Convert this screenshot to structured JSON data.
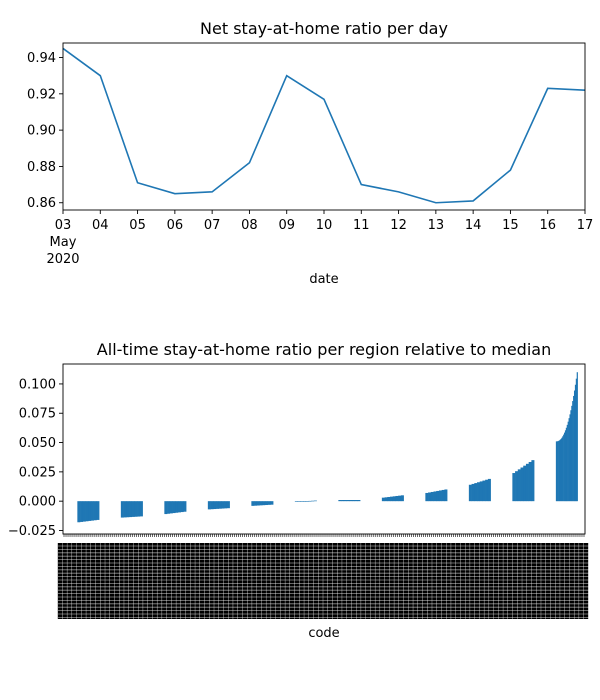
{
  "chart_data": [
    {
      "type": "line",
      "title": "Net stay-at-home ratio per day",
      "xlabel": "date",
      "ylabel": "",
      "x": [
        "2020-05-03",
        "2020-05-04",
        "2020-05-05",
        "2020-05-06",
        "2020-05-07",
        "2020-05-08",
        "2020-05-09",
        "2020-05-10",
        "2020-05-11",
        "2020-05-12",
        "2020-05-13",
        "2020-05-14",
        "2020-05-15",
        "2020-05-16",
        "2020-05-17"
      ],
      "x_tick_labels": [
        "03",
        "04",
        "05",
        "06",
        "07",
        "08",
        "09",
        "10",
        "11",
        "12",
        "13",
        "14",
        "15",
        "16",
        "17"
      ],
      "x_tick_sublabel": [
        "May",
        "2020"
      ],
      "series": [
        {
          "values": [
            0.945,
            0.93,
            0.871,
            0.865,
            0.866,
            0.882,
            0.93,
            0.917,
            0.87,
            0.866,
            0.86,
            0.861,
            0.878,
            0.923,
            0.922
          ],
          "color": "#1f77b4"
        }
      ],
      "ylim": [
        0.856,
        0.948
      ],
      "y_ticks": [
        0.86,
        0.88,
        0.9,
        0.92,
        0.94
      ],
      "y_tick_labels": [
        "0.86",
        "0.88",
        "0.90",
        "0.92",
        "0.94"
      ],
      "grid": false
    },
    {
      "type": "bar",
      "title": "All-time stay-at-home ratio per region relative to median",
      "xlabel": "code",
      "ylabel": "",
      "note": "Bars sorted ascending; category tick labels are dense and overlapping (illegible).",
      "bar_color": "#1f77b4",
      "ylim": [
        -0.028,
        0.117
      ],
      "y_ticks": [
        -0.025,
        0.0,
        0.025,
        0.05,
        0.075,
        0.1
      ],
      "y_tick_labels": [
        "−0.025",
        "0.000",
        "0.025",
        "0.050",
        "0.075",
        "0.100"
      ],
      "groups": [
        {
          "start": -0.018,
          "end": -0.016
        },
        {
          "start": -0.014,
          "end": -0.013
        },
        {
          "start": -0.011,
          "end": -0.009
        },
        {
          "start": -0.007,
          "end": -0.006
        },
        {
          "start": -0.004,
          "end": -0.003
        },
        {
          "start": -0.0005,
          "end": 0.0005
        },
        {
          "start": 0.001,
          "end": 0.001
        },
        {
          "start": 0.003,
          "end": 0.005
        },
        {
          "start": 0.007,
          "end": 0.01
        },
        {
          "start": 0.014,
          "end": 0.019
        },
        {
          "start": 0.024,
          "end": 0.035
        },
        {
          "start": 0.051,
          "end": 0.11
        }
      ]
    }
  ]
}
